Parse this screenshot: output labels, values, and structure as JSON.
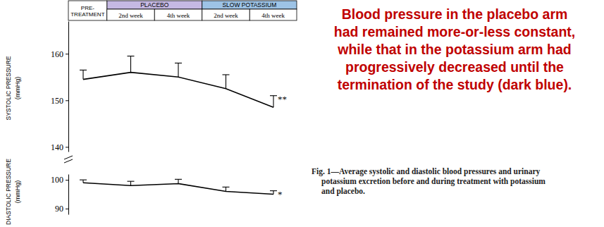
{
  "chart_data": [
    {
      "type": "line",
      "y_label": [
        "SYSTOLIC PRESSURE",
        "(mmHg)"
      ],
      "categories": [
        "PRE-TREATMENT",
        "2nd week",
        "4th week",
        "2nd week",
        "4th week"
      ],
      "groups": [
        {
          "name": "PLACEBO",
          "color": "#c5b9e3",
          "categories": [
            1,
            2
          ]
        },
        {
          "name": "SLOW POTASSIUM",
          "color": "#9dc3e6",
          "categories": [
            3,
            4
          ]
        }
      ],
      "values": [
        154.5,
        156,
        155,
        152.5,
        148.5
      ],
      "errors": [
        2,
        3.5,
        3,
        3,
        2.5
      ],
      "significance": [
        null,
        null,
        null,
        null,
        "**"
      ],
      "color": "#000000",
      "ylim": [
        139,
        167
      ],
      "yticks": [
        140,
        150,
        160
      ]
    },
    {
      "type": "line",
      "y_label": [
        "DIASTOLIC PRESSURE",
        "(mmHg)"
      ],
      "values": [
        99,
        98,
        98.7,
        96,
        95
      ],
      "errors": [
        1,
        1.5,
        1.5,
        1.5,
        1.2
      ],
      "significance": [
        null,
        null,
        null,
        null,
        "*"
      ],
      "color": "#000000",
      "ylim": [
        88,
        102
      ],
      "yticks": [
        90,
        100
      ]
    }
  ],
  "annotation": {
    "lines": [
      "Blood pressure in the placebo arm",
      "had remained more-or-less constant,",
      "while that in the potassium arm had",
      "progressively decreased until the",
      "termination of the study (dark blue)."
    ],
    "color": "#c00000"
  },
  "caption": [
    "Fig. 1—Average systolic and diastolic blood pressures and urinary",
    "potassium excretion before and during treatment with potassium",
    "and placebo."
  ]
}
